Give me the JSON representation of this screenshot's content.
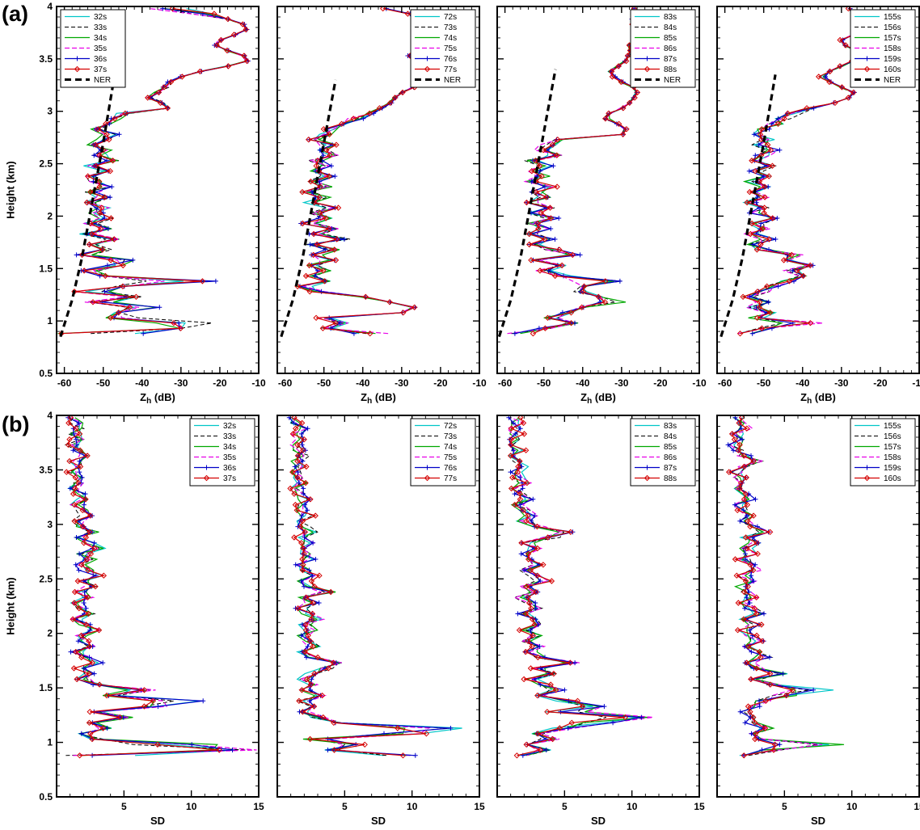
{
  "figure": {
    "panel_labels": [
      "(a)",
      "(b)"
    ],
    "background": "#ffffff",
    "rows": [
      {
        "id": "a",
        "ylabel": "Height (km)",
        "xlabel": {
          "main": "Z",
          "sub": "h",
          "unit": " (dB)"
        },
        "xlim": [
          -62,
          -10
        ],
        "xticks": [
          -60,
          -50,
          -40,
          -30,
          -20,
          -10
        ],
        "xtick_labels": [
          "-60",
          "-50",
          "-40",
          "-30",
          "-20",
          "-10"
        ],
        "xminor": 2,
        "ylim": [
          0.5,
          4
        ],
        "yticks": [
          0.5,
          1,
          1.5,
          2,
          2.5,
          3,
          3.5,
          4
        ],
        "ytick_labels": [
          "0.5",
          "1",
          "1.5",
          "2",
          "2.5",
          "3",
          "3.5",
          "4"
        ],
        "yminor": 0.1
      },
      {
        "id": "b",
        "ylabel": "Height (km)",
        "xlabel": {
          "main": "SD",
          "sub": "",
          "unit": ""
        },
        "xlim": [
          0,
          15
        ],
        "xticks": [
          5,
          10,
          15
        ],
        "xtick_labels": [
          "5",
          "10",
          "15"
        ],
        "xminor": 1,
        "ylim": [
          0.5,
          4
        ],
        "yticks": [
          0.5,
          1,
          1.5,
          2,
          2.5,
          3,
          3.5,
          4
        ],
        "ytick_labels": [
          "0.5",
          "1",
          "1.5",
          "2",
          "2.5",
          "3",
          "3.5",
          "4"
        ],
        "yminor": 0.1
      }
    ],
    "series_styles": [
      {
        "color": "#00c6c8",
        "dash": "",
        "marker": "",
        "width": 1.2
      },
      {
        "color": "#000000",
        "dash": "5,3",
        "marker": "",
        "width": 1
      },
      {
        "color": "#00a800",
        "dash": "",
        "marker": "",
        "width": 1.2
      },
      {
        "color": "#e800e8",
        "dash": "6,3",
        "marker": "",
        "width": 1.2
      },
      {
        "color": "#0000c8",
        "dash": "",
        "marker": "plus",
        "width": 1.2
      },
      {
        "color": "#d40000",
        "dash": "",
        "marker": "diamond",
        "width": 1.2
      }
    ],
    "ner_style": {
      "color": "#000000",
      "dash": "8,5",
      "width": 3.2
    }
  },
  "chart_data": {
    "type": "line",
    "description": "Vertical radar profiles: row (a) reflectivity Zh (dB) vs height (km) with noise-equivalent reflectivity (NER) reference line; row (b) standard deviation SD vs height (km). Six closely overlapping time series per panel; values below ~2.9 km are noisy around the base profile.",
    "heights_km": [
      0.88,
      0.93,
      0.98,
      1.03,
      1.08,
      1.13,
      1.18,
      1.23,
      1.28,
      1.33,
      1.38,
      1.43,
      1.48,
      1.53,
      1.58,
      1.63,
      1.68,
      1.73,
      1.78,
      1.83,
      1.88,
      1.93,
      1.98,
      2.03,
      2.08,
      2.13,
      2.18,
      2.23,
      2.28,
      2.33,
      2.38,
      2.43,
      2.48,
      2.53,
      2.58,
      2.63,
      2.68,
      2.73,
      2.78,
      2.83,
      2.88,
      2.93,
      2.98,
      3.03,
      3.08,
      3.13,
      3.18,
      3.23,
      3.28,
      3.33,
      3.38,
      3.43,
      3.48,
      3.53,
      3.58,
      3.63,
      3.68,
      3.73,
      3.78,
      3.83,
      3.88,
      3.93,
      3.98
    ],
    "panels": [
      {
        "id": "a1",
        "row": "a",
        "legend_pos": "top-left",
        "series": [
          "32s",
          "33s",
          "34s",
          "35s",
          "36s",
          "37s"
        ],
        "ner_label": "NER",
        "values": [
          -55,
          -30,
          -28,
          -50,
          -45,
          -38,
          -52,
          -42,
          -55,
          -45,
          -27,
          -50,
          -55,
          -47,
          -43,
          -55,
          -50,
          -53,
          -48,
          -54,
          -50,
          -53,
          -49,
          -52,
          -50,
          -54,
          -50,
          -53,
          -49,
          -52,
          -54,
          -50,
          -53,
          -48,
          -51,
          -49,
          -52,
          -50,
          -48,
          -51,
          -49,
          -47,
          -45,
          -33,
          -35,
          -38,
          -36,
          -34,
          -33,
          -30,
          -25,
          -18,
          -13,
          -14,
          -18,
          -21,
          -20,
          -16,
          -13,
          -14,
          -18,
          -26,
          -36
        ],
        "ner": {
          "heights": [
            0.85,
            1.2,
            1.6,
            2.1,
            2.7,
            3.25
          ],
          "values": [
            -61,
            -58,
            -55.5,
            -53,
            -50,
            -47.5
          ]
        }
      },
      {
        "id": "a2",
        "row": "a",
        "legend_pos": "top-right",
        "series": [
          "72s",
          "73s",
          "74s",
          "75s",
          "76s",
          "77s"
        ],
        "ner_label": "NER",
        "values": [
          -36,
          -52,
          -45,
          -50,
          -30,
          -27,
          -33,
          -40,
          -52,
          -55,
          -50,
          -54,
          -50,
          -53,
          -49,
          -52,
          -48,
          -53,
          -45,
          -52,
          -48,
          -54,
          -50,
          -52,
          -48,
          -53,
          -50,
          -54,
          -50,
          -52,
          -49,
          -53,
          -50,
          -52,
          -48,
          -51,
          -49,
          -52,
          -50,
          -48,
          -45,
          -42,
          -38,
          -35,
          -33,
          -32,
          -30,
          -27,
          -23,
          -19,
          -19,
          -22,
          -26,
          -28,
          -26,
          -24,
          -25,
          -27,
          -24,
          -21,
          -23,
          -28,
          -34
        ],
        "ner": {
          "heights": [
            0.85,
            1.2,
            1.6,
            2.1,
            2.7,
            3.3
          ],
          "values": [
            -61,
            -58,
            -55.5,
            -53,
            -50,
            -47
          ]
        }
      },
      {
        "id": "a3",
        "row": "a",
        "legend_pos": "top-right",
        "series": [
          "83s",
          "84s",
          "85s",
          "86s",
          "87s",
          "88s"
        ],
        "ner_label": "NER",
        "values": [
          -57,
          -50,
          -42,
          -48,
          -44,
          -40,
          -30,
          -35,
          -45,
          -40,
          -32,
          -45,
          -50,
          -46,
          -52,
          -42,
          -48,
          -52,
          -49,
          -53,
          -50,
          -52,
          -48,
          -52,
          -49,
          -53,
          -50,
          -52,
          -48,
          -53,
          -50,
          -52,
          -49,
          -53,
          -47,
          -51,
          -49,
          -46,
          -30,
          -29,
          -31,
          -34,
          -33,
          -30,
          -28,
          -27,
          -26,
          -27,
          -30,
          -32,
          -33,
          -31,
          -29,
          -28,
          -28,
          -28,
          -27,
          -27,
          -27,
          -27,
          -27,
          -27,
          -27
        ],
        "ner": {
          "heights": [
            0.85,
            1.2,
            1.6,
            2.1,
            2.7,
            3.4
          ],
          "values": [
            -61.5,
            -58.5,
            -56,
            -53.5,
            -50.5,
            -47
          ]
        }
      },
      {
        "id": "a4",
        "row": "a",
        "legend_pos": "top-right",
        "series": [
          "155s",
          "156s",
          "157s",
          "158s",
          "159s",
          "160s"
        ],
        "ner_label": "NER",
        "values": [
          -55,
          -50,
          -38,
          -52,
          -48,
          -53,
          -50,
          -54,
          -50,
          -48,
          -44,
          -40,
          -43,
          -38,
          -45,
          -42,
          -50,
          -52,
          -49,
          -53,
          -50,
          -52,
          -48,
          -52,
          -49,
          -53,
          -50,
          -52,
          -49,
          -53,
          -50,
          -52,
          -48,
          -52,
          -50,
          -48,
          -51,
          -49,
          -52,
          -50,
          -47,
          -45,
          -42,
          -38,
          -32,
          -28,
          -27,
          -30,
          -33,
          -35,
          -33,
          -30,
          -27,
          -24,
          -26,
          -29,
          -30,
          -27,
          -23,
          -24,
          -26,
          -27,
          -28
        ],
        "ner": {
          "heights": [
            0.85,
            1.2,
            1.6,
            2.1,
            2.7,
            3.35
          ],
          "values": [
            -61,
            -58,
            -55.5,
            -53,
            -50,
            -47
          ]
        }
      },
      {
        "id": "b1",
        "row": "b",
        "legend_pos": "top-right",
        "series": [
          "32s",
          "33s",
          "34s",
          "35s",
          "36s",
          "37s"
        ],
        "values": [
          2.0,
          13.5,
          11.0,
          3.0,
          2.0,
          3.5,
          2.5,
          5.0,
          3.0,
          8.0,
          11.0,
          4.0,
          6.5,
          3.0,
          2.0,
          2.5,
          1.8,
          3.0,
          2.2,
          1.5,
          2.5,
          2.0,
          1.8,
          2.8,
          2.0,
          1.5,
          2.5,
          2.0,
          1.6,
          2.2,
          1.8,
          2.5,
          2.0,
          3.0,
          2.2,
          1.8,
          2.5,
          2.0,
          3.2,
          2.4,
          1.8,
          2.6,
          2.0,
          1.6,
          2.2,
          1.8,
          1.5,
          2.0,
          1.7,
          1.4,
          1.8,
          1.5,
          1.2,
          1.6,
          1.3,
          1.8,
          1.4,
          1.2,
          1.5,
          1.3,
          1.6,
          1.4,
          1.2
        ]
      },
      {
        "id": "b2",
        "row": "b",
        "legend_pos": "top-right",
        "series": [
          "72s",
          "73s",
          "74s",
          "75s",
          "76s",
          "77s"
        ],
        "values": [
          9.5,
          4.0,
          6.0,
          3.0,
          10.0,
          14.0,
          4.0,
          3.0,
          2.0,
          2.5,
          2.0,
          3.0,
          2.2,
          2.8,
          2.0,
          2.5,
          3.5,
          5.0,
          2.5,
          2.0,
          2.8,
          2.2,
          1.8,
          2.5,
          2.0,
          3.0,
          2.3,
          1.8,
          2.6,
          2.0,
          4.0,
          2.5,
          2.0,
          2.8,
          2.2,
          1.8,
          2.4,
          2.0,
          1.6,
          2.2,
          1.8,
          2.5,
          2.0,
          1.7,
          2.3,
          1.9,
          1.5,
          2.1,
          1.7,
          1.4,
          2.0,
          1.6,
          1.3,
          1.8,
          1.5,
          2.0,
          1.6,
          1.3,
          1.7,
          1.4,
          1.8,
          1.5,
          1.2
        ]
      },
      {
        "id": "b3",
        "row": "b",
        "legend_pos": "top-right",
        "series": [
          "83s",
          "84s",
          "85s",
          "86s",
          "87s",
          "88s"
        ],
        "values": [
          2.0,
          3.5,
          2.5,
          4.0,
          3.0,
          5.0,
          8.0,
          10.5,
          4.0,
          7.5,
          5.0,
          3.0,
          4.5,
          3.5,
          2.5,
          4.0,
          3.0,
          5.5,
          3.5,
          2.5,
          3.0,
          2.2,
          2.8,
          2.0,
          3.2,
          2.5,
          2.0,
          3.0,
          2.4,
          1.8,
          2.6,
          2.0,
          3.5,
          2.8,
          2.2,
          3.0,
          2.5,
          2.0,
          2.8,
          2.2,
          4.0,
          5.5,
          3.0,
          2.0,
          2.5,
          2.0,
          1.6,
          2.2,
          1.8,
          1.5,
          2.0,
          1.6,
          1.3,
          1.8,
          1.5,
          1.2,
          1.6,
          1.4,
          1.2,
          1.5,
          1.3,
          1.6,
          1.4
        ]
      },
      {
        "id": "b4",
        "row": "b",
        "legend_pos": "top-right",
        "series": [
          "155s",
          "156s",
          "157s",
          "158s",
          "159s",
          "160s"
        ],
        "values": [
          2.0,
          4.0,
          9.5,
          3.0,
          2.5,
          3.5,
          2.5,
          3.0,
          2.2,
          2.8,
          3.5,
          5.0,
          8.5,
          4.0,
          3.0,
          4.5,
          3.0,
          2.5,
          3.5,
          2.8,
          2.2,
          3.0,
          2.4,
          2.0,
          2.8,
          2.2,
          3.0,
          2.5,
          2.0,
          2.6,
          2.2,
          1.8,
          2.4,
          2.0,
          2.8,
          2.3,
          1.9,
          2.5,
          2.1,
          2.8,
          2.3,
          3.5,
          2.8,
          2.2,
          2.6,
          2.0,
          1.7,
          2.3,
          1.9,
          1.5,
          2.1,
          1.7,
          1.4,
          1.9,
          3.0,
          2.0,
          1.6,
          1.3,
          1.8,
          1.5,
          2.2,
          1.8,
          1.4
        ]
      }
    ]
  }
}
